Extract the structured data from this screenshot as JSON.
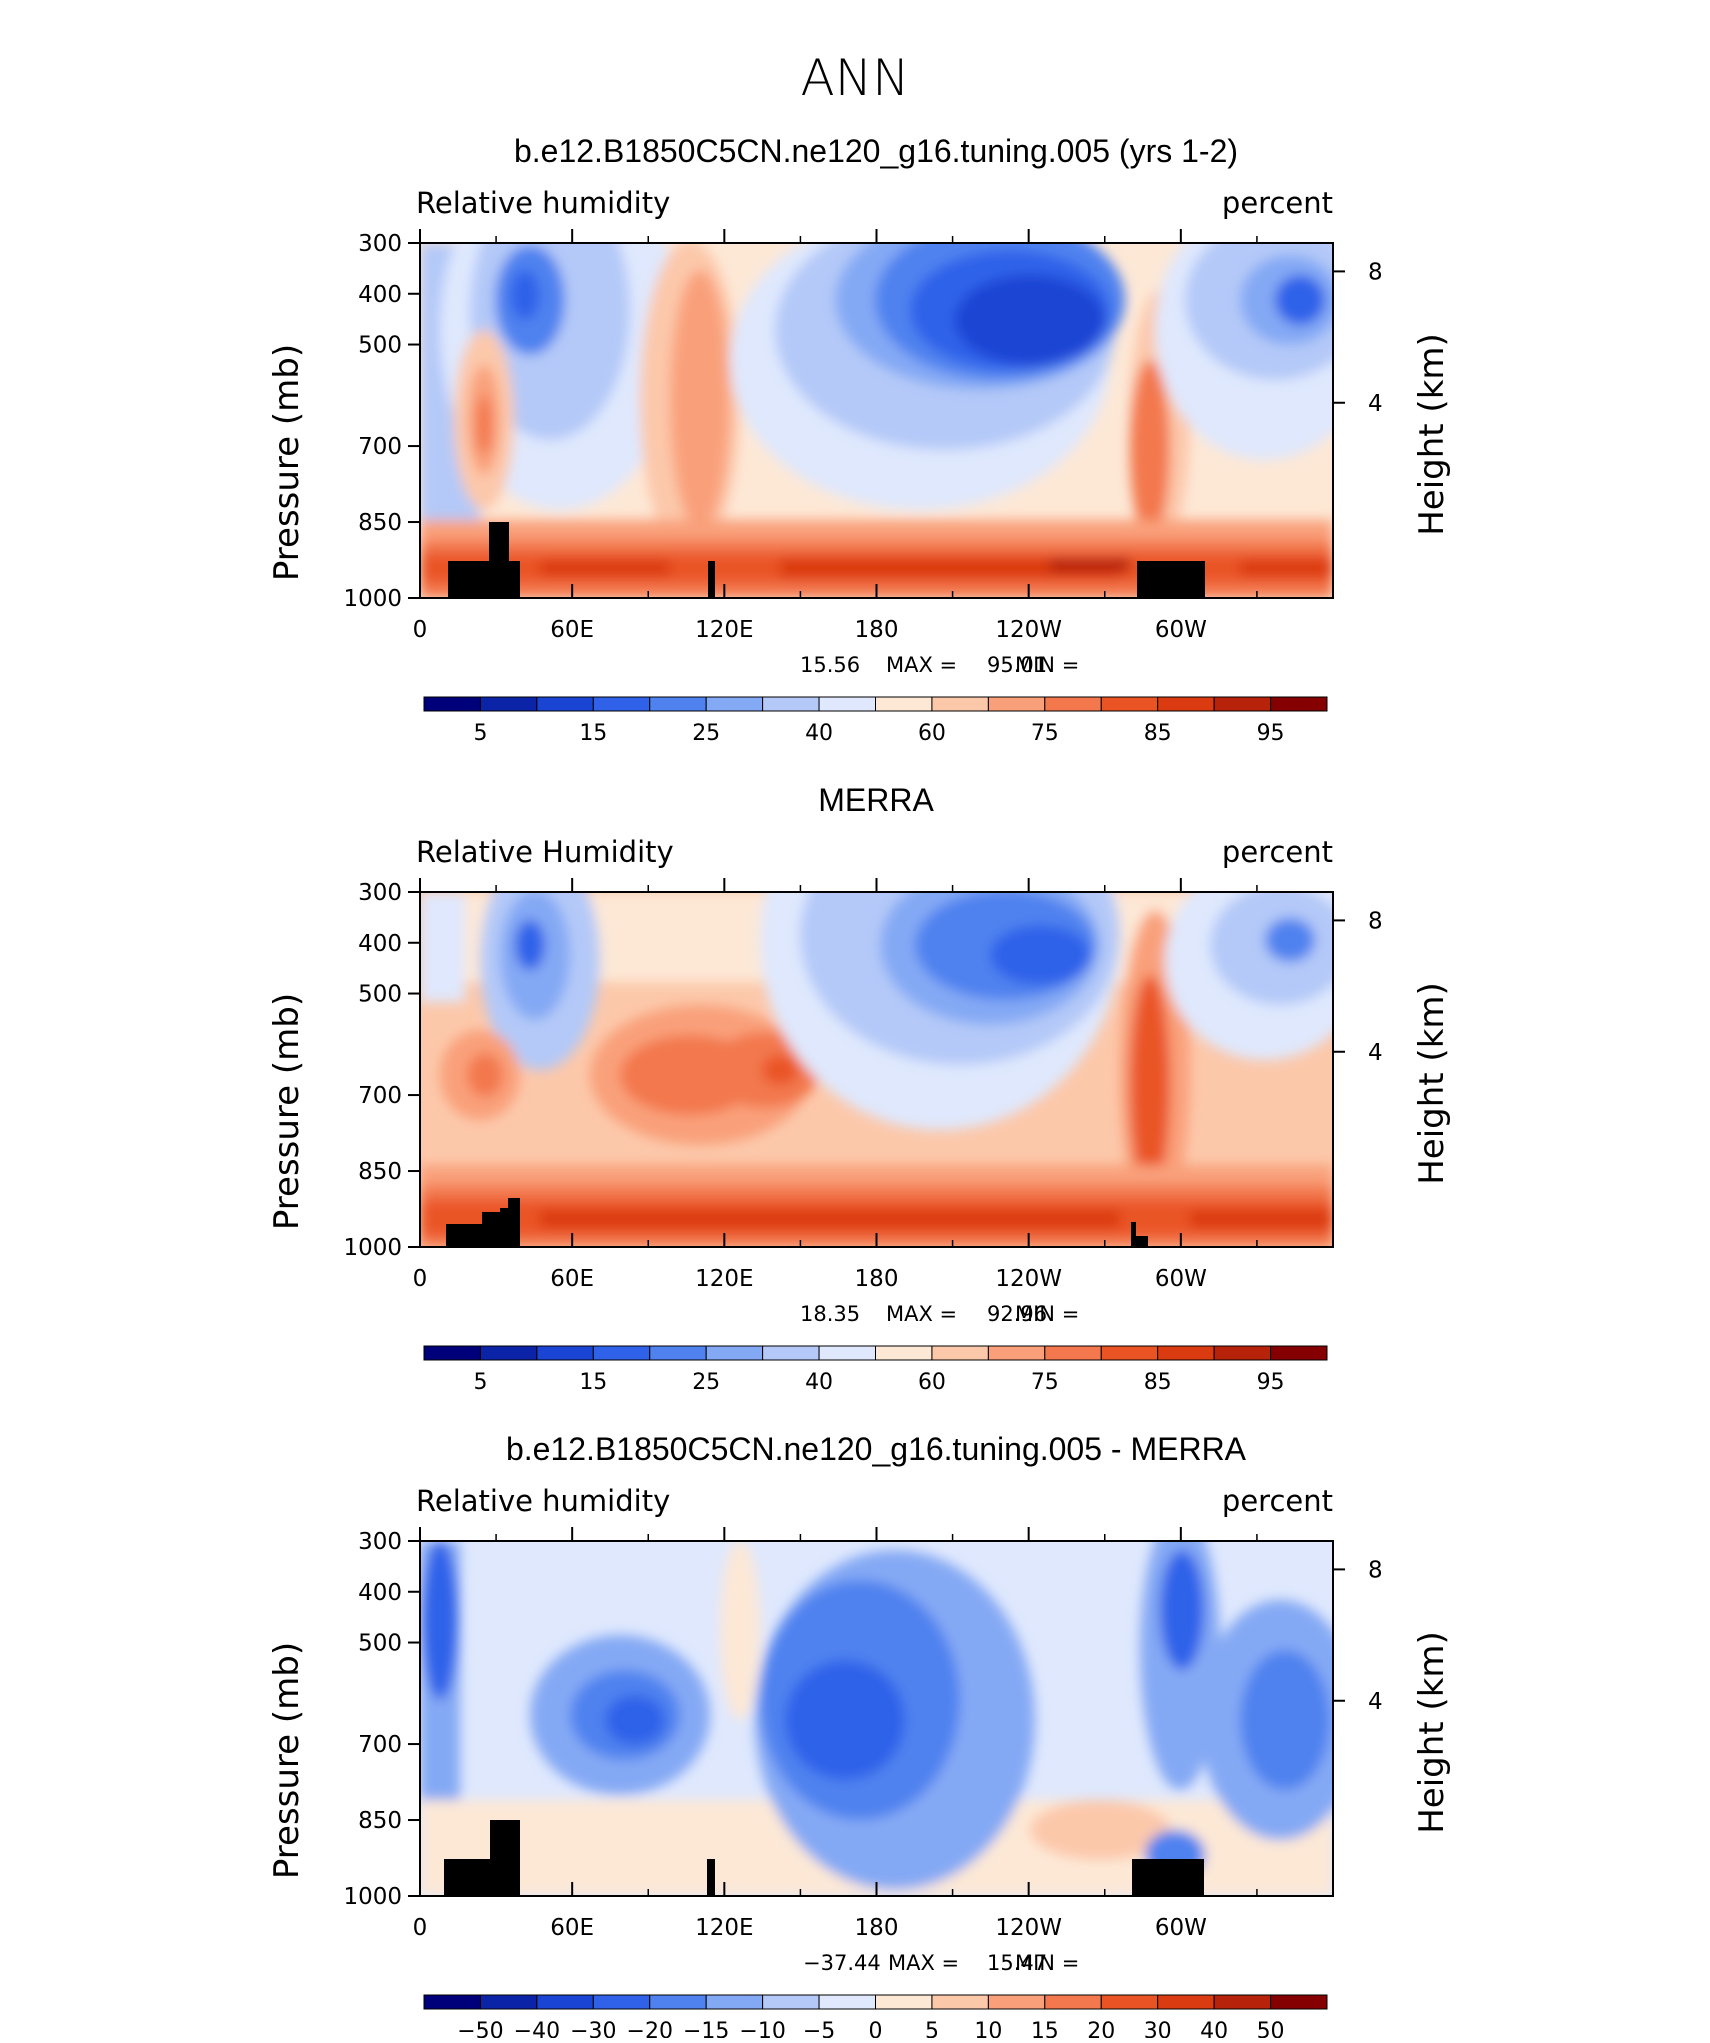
{
  "page_title": "ANN",
  "colors": {
    "blues": [
      "#00007a",
      "#0b23a7",
      "#1a45d4",
      "#2f62e9",
      "#4f82ef",
      "#84a9f4",
      "#b4c9f8",
      "#dfe8fd"
    ],
    "reds": [
      "#fde8d6",
      "#fcc8aa",
      "#f9a07a",
      "#f3784e",
      "#ea5425",
      "#db3b10",
      "#b6230a",
      "#850000"
    ],
    "land": "#000000"
  },
  "chart_data": [
    {
      "type": "contour",
      "title": "b.e12.B1850C5CN.ne120_g16.tuning.005 (yrs 1-2)",
      "variable_label": "Relative humidity",
      "units_label": "percent",
      "ylabel": "Pressure (mb)",
      "y2label": "Height (km)",
      "y_ticks": [
        "300",
        "400",
        "500",
        "700",
        "850",
        "1000"
      ],
      "y2_ticks": [
        "8",
        "4"
      ],
      "x_ticks": [
        "0",
        "60E",
        "120E",
        "180",
        "120W",
        "60W"
      ],
      "stats": {
        "min_label": "MIN =",
        "min": "15.56",
        "max_label": "MAX =",
        "max": "95.01"
      },
      "colorbar_labels": [
        "5",
        "15",
        "25",
        "40",
        "60",
        "75",
        "85",
        "95"
      ],
      "colorbar_levels": 16
    },
    {
      "type": "contour",
      "title": "MERRA",
      "variable_label": "Relative Humidity",
      "units_label": "percent",
      "ylabel": "Pressure (mb)",
      "y2label": "Height (km)",
      "y_ticks": [
        "300",
        "400",
        "500",
        "700",
        "850",
        "1000"
      ],
      "y2_ticks": [
        "8",
        "4"
      ],
      "x_ticks": [
        "0",
        "60E",
        "120E",
        "180",
        "120W",
        "60W"
      ],
      "stats": {
        "min_label": "MIN =",
        "min": "18.35",
        "max_label": "MAX =",
        "max": "92.96"
      },
      "colorbar_labels": [
        "5",
        "15",
        "25",
        "40",
        "60",
        "75",
        "85",
        "95"
      ],
      "colorbar_levels": 16
    },
    {
      "type": "contour",
      "title": "b.e12.B1850C5CN.ne120_g16.tuning.005 - MERRA",
      "variable_label": "Relative humidity",
      "units_label": "percent",
      "ylabel": "Pressure (mb)",
      "y2label": "Height (km)",
      "y_ticks": [
        "300",
        "400",
        "500",
        "700",
        "850",
        "1000"
      ],
      "y2_ticks": [
        "8",
        "4"
      ],
      "x_ticks": [
        "0",
        "60E",
        "120E",
        "180",
        "120W",
        "60W"
      ],
      "stats": {
        "min_label": "MIN =",
        "min": "−37.44",
        "max_label": "MAX =",
        "max": "15.47"
      },
      "colorbar_labels": [
        "−50",
        "−40",
        "−30",
        "−20",
        "−15",
        "−10",
        "−5",
        "0",
        "5",
        "10",
        "15",
        "20",
        "30",
        "40",
        "50"
      ],
      "colorbar_levels": 16
    }
  ]
}
